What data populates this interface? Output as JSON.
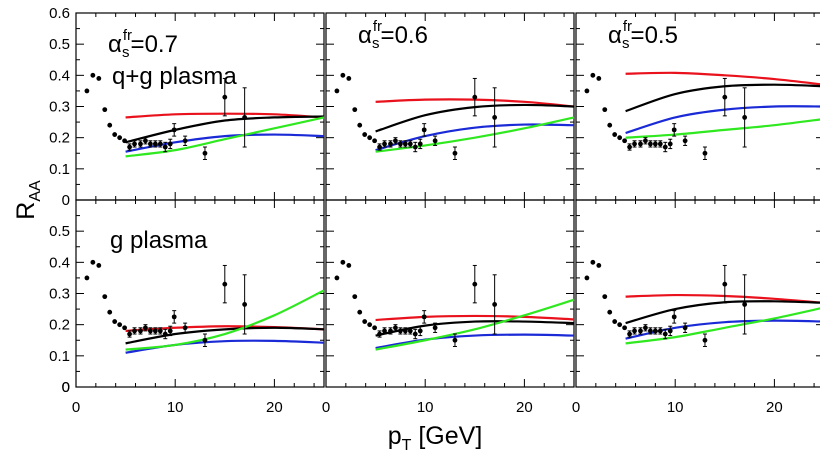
{
  "chart_data": {
    "type": "line",
    "layout": "2 rows x 3 columns of panels with shared axes",
    "xlabel": "p_T [GeV]",
    "ylabel": "R_AA",
    "xlim": [
      0,
      25
    ],
    "ylim": [
      0,
      0.6
    ],
    "xticks": [
      0,
      10,
      20
    ],
    "yticks": [
      0,
      0.1,
      0.2,
      0.3,
      0.4,
      0.5,
      0.6
    ],
    "grid": false,
    "legend": "none",
    "colors": {
      "red": "#e8111c",
      "black": "#000000",
      "blue": "#1a2ad6",
      "green": "#2fe81f",
      "data": "#000000"
    },
    "column_titles": [
      "α_s^fr=0.7",
      "α_s^fr=0.6",
      "α_s^fr=0.5"
    ],
    "row_titles": [
      "q+g  plasma",
      "g  plasma"
    ],
    "data_points": [
      {
        "x": 1.1,
        "y": 0.35,
        "err": 0
      },
      {
        "x": 1.7,
        "y": 0.4,
        "err": 0
      },
      {
        "x": 2.3,
        "y": 0.39,
        "err": 0
      },
      {
        "x": 2.9,
        "y": 0.29,
        "err": 0
      },
      {
        "x": 3.4,
        "y": 0.24,
        "err": 0
      },
      {
        "x": 3.9,
        "y": 0.21,
        "err": 0
      },
      {
        "x": 4.4,
        "y": 0.2,
        "err": 0
      },
      {
        "x": 4.9,
        "y": 0.19,
        "err": 0
      },
      {
        "x": 5.4,
        "y": 0.17,
        "err": 0.01
      },
      {
        "x": 5.9,
        "y": 0.18,
        "err": 0.01
      },
      {
        "x": 6.5,
        "y": 0.18,
        "err": 0.01
      },
      {
        "x": 7.0,
        "y": 0.19,
        "err": 0.01
      },
      {
        "x": 7.5,
        "y": 0.18,
        "err": 0.01
      },
      {
        "x": 8.0,
        "y": 0.18,
        "err": 0.01
      },
      {
        "x": 8.5,
        "y": 0.18,
        "err": 0.01
      },
      {
        "x": 9.0,
        "y": 0.17,
        "err": 0.015
      },
      {
        "x": 9.5,
        "y": 0.18,
        "err": 0.015
      },
      {
        "x": 9.9,
        "y": 0.225,
        "err": 0.02
      },
      {
        "x": 11.0,
        "y": 0.19,
        "err": 0.015
      },
      {
        "x": 13.0,
        "y": 0.15,
        "err": 0.02
      },
      {
        "x": 15.0,
        "y": 0.33,
        "err": 0.06
      },
      {
        "x": 17.0,
        "y": 0.265,
        "err": 0.095
      }
    ],
    "panels": [
      {
        "row": 0,
        "col": 0,
        "series": [
          {
            "color": "red",
            "x": [
              5,
              10,
              15,
              20,
              25
            ],
            "y": [
              0.265,
              0.275,
              0.277,
              0.275,
              0.265
            ]
          },
          {
            "color": "black",
            "x": [
              5,
              10,
              15,
              20,
              25
            ],
            "y": [
              0.185,
              0.225,
              0.255,
              0.265,
              0.268
            ]
          },
          {
            "color": "blue",
            "x": [
              5,
              10,
              15,
              20,
              25
            ],
            "y": [
              0.155,
              0.185,
              0.205,
              0.21,
              0.205
            ]
          },
          {
            "color": "green",
            "x": [
              5,
              10,
              15,
              20,
              25
            ],
            "y": [
              0.14,
              0.16,
              0.195,
              0.23,
              0.265
            ]
          }
        ]
      },
      {
        "row": 0,
        "col": 1,
        "series": [
          {
            "color": "red",
            "x": [
              5,
              10,
              15,
              20,
              25
            ],
            "y": [
              0.315,
              0.322,
              0.322,
              0.315,
              0.3
            ]
          },
          {
            "color": "black",
            "x": [
              5,
              10,
              15,
              20,
              25
            ],
            "y": [
              0.22,
              0.272,
              0.298,
              0.305,
              0.3
            ]
          },
          {
            "color": "blue",
            "x": [
              5,
              10,
              15,
              20,
              25
            ],
            "y": [
              0.16,
              0.205,
              0.232,
              0.242,
              0.24
            ]
          },
          {
            "color": "green",
            "x": [
              5,
              10,
              15,
              20,
              25
            ],
            "y": [
              0.155,
              0.175,
              0.2,
              0.23,
              0.265
            ]
          }
        ]
      },
      {
        "row": 0,
        "col": 2,
        "series": [
          {
            "color": "red",
            "x": [
              5,
              10,
              15,
              20,
              25
            ],
            "y": [
              0.405,
              0.408,
              0.4,
              0.388,
              0.37
            ]
          },
          {
            "color": "black",
            "x": [
              5,
              10,
              15,
              20,
              25
            ],
            "y": [
              0.285,
              0.34,
              0.365,
              0.37,
              0.365
            ]
          },
          {
            "color": "blue",
            "x": [
              5,
              10,
              15,
              20,
              25
            ],
            "y": [
              0.215,
              0.265,
              0.29,
              0.3,
              0.3
            ]
          },
          {
            "color": "green",
            "x": [
              5,
              10,
              15,
              20,
              25
            ],
            "y": [
              0.2,
              0.21,
              0.225,
              0.24,
              0.26
            ]
          }
        ]
      },
      {
        "row": 1,
        "col": 0,
        "series": [
          {
            "color": "red",
            "x": [
              5,
              10,
              15,
              20,
              25
            ],
            "y": [
              0.18,
              0.19,
              0.195,
              0.192,
              0.185
            ]
          },
          {
            "color": "black",
            "x": [
              5,
              10,
              15,
              20,
              25
            ],
            "y": [
              0.14,
              0.17,
              0.185,
              0.19,
              0.185
            ]
          },
          {
            "color": "blue",
            "x": [
              5,
              10,
              15,
              20,
              25
            ],
            "y": [
              0.11,
              0.135,
              0.147,
              0.148,
              0.142
            ]
          },
          {
            "color": "green",
            "x": [
              5,
              10,
              15,
              20,
              25
            ],
            "y": [
              0.12,
              0.135,
              0.17,
              0.23,
              0.31
            ]
          }
        ]
      },
      {
        "row": 1,
        "col": 1,
        "series": [
          {
            "color": "red",
            "x": [
              5,
              10,
              15,
              20,
              25
            ],
            "y": [
              0.215,
              0.225,
              0.228,
              0.225,
              0.217
            ]
          },
          {
            "color": "black",
            "x": [
              5,
              10,
              15,
              20,
              25
            ],
            "y": [
              0.165,
              0.197,
              0.21,
              0.21,
              0.205
            ]
          },
          {
            "color": "blue",
            "x": [
              5,
              10,
              15,
              20,
              25
            ],
            "y": [
              0.125,
              0.152,
              0.165,
              0.168,
              0.165
            ]
          },
          {
            "color": "green",
            "x": [
              5,
              10,
              15,
              20,
              25
            ],
            "y": [
              0.12,
              0.15,
              0.185,
              0.23,
              0.28
            ]
          }
        ]
      },
      {
        "row": 1,
        "col": 2,
        "series": [
          {
            "color": "red",
            "x": [
              5,
              10,
              15,
              20,
              25
            ],
            "y": [
              0.29,
              0.295,
              0.292,
              0.283,
              0.27
            ]
          },
          {
            "color": "black",
            "x": [
              5,
              10,
              15,
              20,
              25
            ],
            "y": [
              0.205,
              0.25,
              0.272,
              0.275,
              0.27
            ]
          },
          {
            "color": "blue",
            "x": [
              5,
              10,
              15,
              20,
              25
            ],
            "y": [
              0.155,
              0.19,
              0.208,
              0.213,
              0.21
            ]
          },
          {
            "color": "green",
            "x": [
              5,
              10,
              15,
              20,
              25
            ],
            "y": [
              0.14,
              0.16,
              0.19,
              0.22,
              0.255
            ]
          }
        ]
      }
    ]
  }
}
